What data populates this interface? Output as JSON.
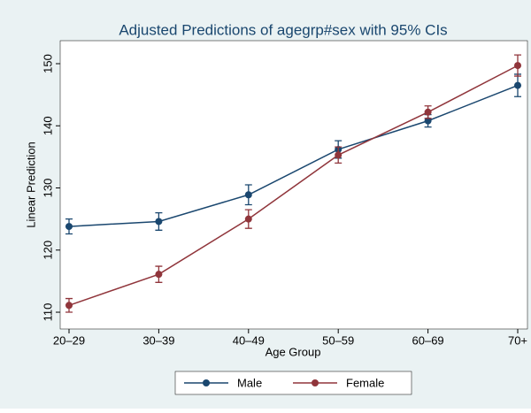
{
  "chart_data": {
    "type": "line",
    "title": "Adjusted Predictions of agegrp#sex with 95% CIs",
    "x_label": "Age Group",
    "y_label": "Linear Prediction",
    "categories": [
      "20–29",
      "30–39",
      "40–49",
      "50–59",
      "60–69",
      "70+"
    ],
    "series": [
      {
        "name": "Male",
        "color": "#1a476f",
        "values": [
          123.8,
          124.6,
          128.9,
          136.2,
          140.8,
          146.5
        ],
        "errors": [
          1.2,
          1.4,
          1.6,
          1.4,
          1.0,
          1.8
        ]
      },
      {
        "name": "Female",
        "color": "#90353b",
        "values": [
          111.1,
          116.1,
          125.0,
          135.3,
          142.2,
          149.7
        ],
        "errors": [
          1.1,
          1.3,
          1.5,
          1.3,
          1.0,
          1.7
        ]
      }
    ],
    "ylim": [
      107.3,
      153.7
    ],
    "yticks": [
      110,
      120,
      130,
      140,
      150
    ],
    "grid": false,
    "legend": "bottom"
  }
}
